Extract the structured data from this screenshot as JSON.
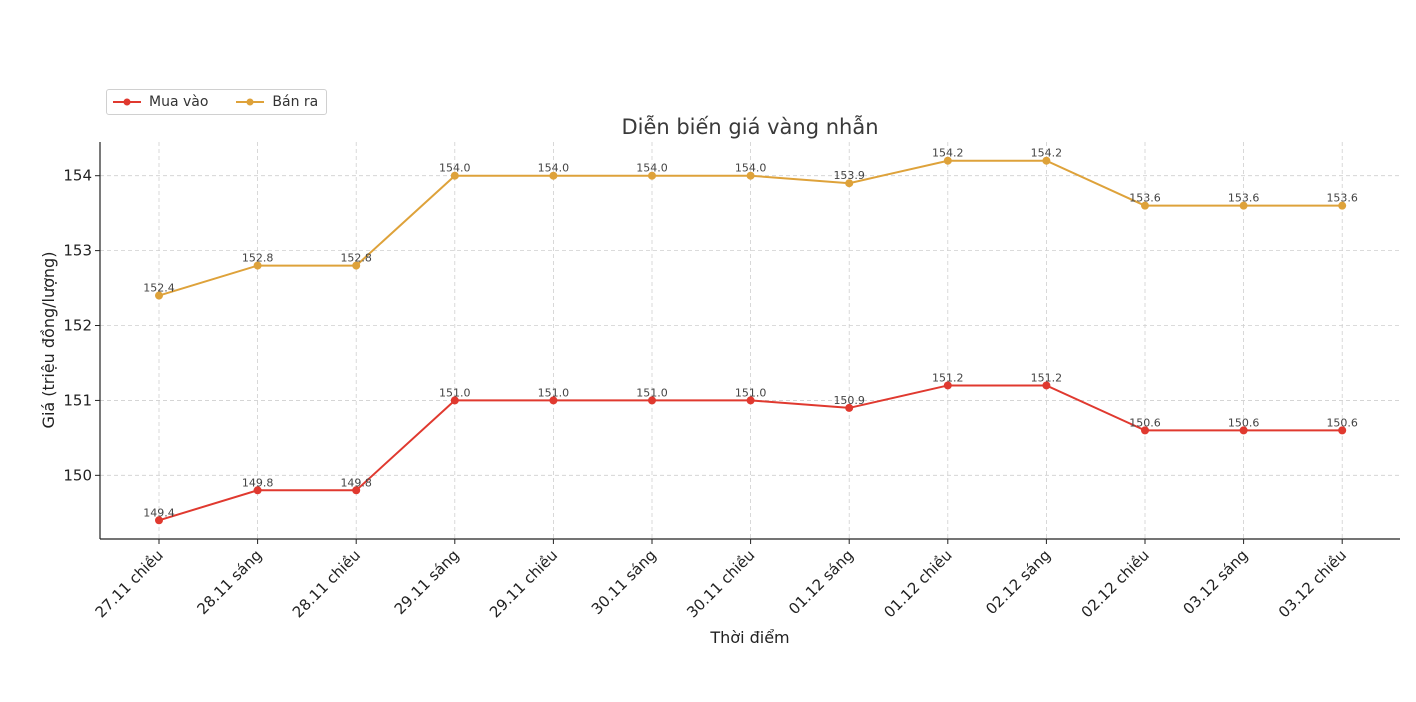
{
  "chart_data": {
    "type": "line",
    "title": "Diễn biến giá vàng nhẫn",
    "xlabel": "Thời điểm",
    "ylabel": "Giá (triệu đồng/lượng)",
    "categories": [
      "27.11 chiều",
      "28.11 sáng",
      "28.11 chiều",
      "29.11 sáng",
      "29.11 chiều",
      "30.11 sáng",
      "30.11 chiều",
      "01.12 sáng",
      "01.12 chiều",
      "02.12 sáng",
      "02.12 chiều",
      "03.12 sáng",
      "03.12 chiều"
    ],
    "yticks": [
      150,
      151,
      152,
      153,
      154
    ],
    "ylim": [
      149.15,
      154.45
    ],
    "grid": true,
    "legend_position": "top-left",
    "series": [
      {
        "name": "Mua vào",
        "color": "#e0392f",
        "values": [
          149.4,
          149.8,
          149.8,
          151.0,
          151.0,
          151.0,
          151.0,
          150.9,
          151.2,
          151.2,
          150.6,
          150.6,
          150.6
        ],
        "labels": [
          "149.4",
          "149.8",
          "149.8",
          "151.0",
          "151.0",
          "151.0",
          "151.0",
          "150.9",
          "151.2",
          "151.2",
          "150.6",
          "150.6",
          "150.6"
        ]
      },
      {
        "name": "Bán ra",
        "color": "#dea23a",
        "values": [
          152.4,
          152.8,
          152.8,
          154.0,
          154.0,
          154.0,
          154.0,
          153.9,
          154.2,
          154.2,
          153.6,
          153.6,
          153.6
        ],
        "labels": [
          "152.4",
          "152.8",
          "152.8",
          "154.0",
          "154.0",
          "154.0",
          "154.0",
          "153.9",
          "154.2",
          "154.2",
          "153.6",
          "153.6",
          "153.6"
        ]
      }
    ]
  }
}
